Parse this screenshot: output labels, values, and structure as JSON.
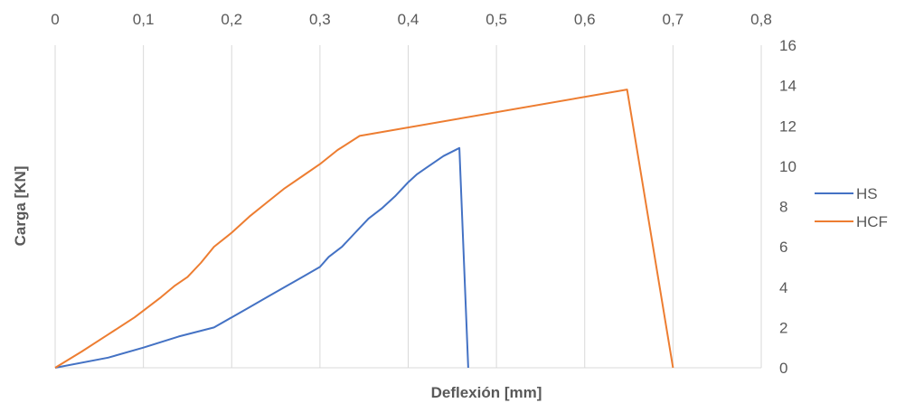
{
  "chart_data": {
    "type": "line",
    "title": "",
    "xlabel": "Deflexión [mm]",
    "ylabel": "Carga [KN]",
    "xlim": [
      0,
      0.8
    ],
    "ylim": [
      0,
      16
    ],
    "x_ticks": [
      "0",
      "0,1",
      "0,2",
      "0,3",
      "0,4",
      "0,5",
      "0,6",
      "0,7",
      "0,8"
    ],
    "y_ticks": [
      "0",
      "2",
      "4",
      "6",
      "8",
      "10",
      "12",
      "14",
      "16"
    ],
    "x_tick_values": [
      0,
      0.1,
      0.2,
      0.3,
      0.4,
      0.5,
      0.6,
      0.7,
      0.8
    ],
    "y_tick_values": [
      0,
      2,
      4,
      6,
      8,
      10,
      12,
      14,
      16
    ],
    "x_axis_position": "top",
    "y_axis_position": "right",
    "grid": "vertical",
    "legend_position": "right",
    "series": [
      {
        "name": "HS",
        "color": "#4472c4",
        "points": [
          [
            0,
            0
          ],
          [
            0.06,
            0.5
          ],
          [
            0.1,
            1.0
          ],
          [
            0.14,
            1.55
          ],
          [
            0.18,
            2.0
          ],
          [
            0.2,
            2.5
          ],
          [
            0.22,
            3.0
          ],
          [
            0.24,
            3.5
          ],
          [
            0.26,
            4.0
          ],
          [
            0.28,
            4.5
          ],
          [
            0.3,
            5.0
          ],
          [
            0.31,
            5.5
          ],
          [
            0.325,
            6.0
          ],
          [
            0.34,
            6.7
          ],
          [
            0.355,
            7.4
          ],
          [
            0.37,
            7.9
          ],
          [
            0.385,
            8.5
          ],
          [
            0.4,
            9.2
          ],
          [
            0.41,
            9.6
          ],
          [
            0.42,
            9.9
          ],
          [
            0.44,
            10.5
          ],
          [
            0.458,
            10.9
          ],
          [
            0.468,
            0
          ]
        ]
      },
      {
        "name": "HCF",
        "color": "#ed7d31",
        "points": [
          [
            0,
            0
          ],
          [
            0.03,
            0.8
          ],
          [
            0.06,
            1.65
          ],
          [
            0.09,
            2.5
          ],
          [
            0.105,
            3.0
          ],
          [
            0.12,
            3.5
          ],
          [
            0.135,
            4.05
          ],
          [
            0.15,
            4.5
          ],
          [
            0.165,
            5.2
          ],
          [
            0.18,
            6.0
          ],
          [
            0.2,
            6.7
          ],
          [
            0.22,
            7.5
          ],
          [
            0.24,
            8.2
          ],
          [
            0.26,
            8.9
          ],
          [
            0.28,
            9.5
          ],
          [
            0.3,
            10.1
          ],
          [
            0.32,
            10.8
          ],
          [
            0.345,
            11.5
          ],
          [
            0.648,
            13.8
          ],
          [
            0.7,
            0
          ]
        ]
      }
    ]
  }
}
